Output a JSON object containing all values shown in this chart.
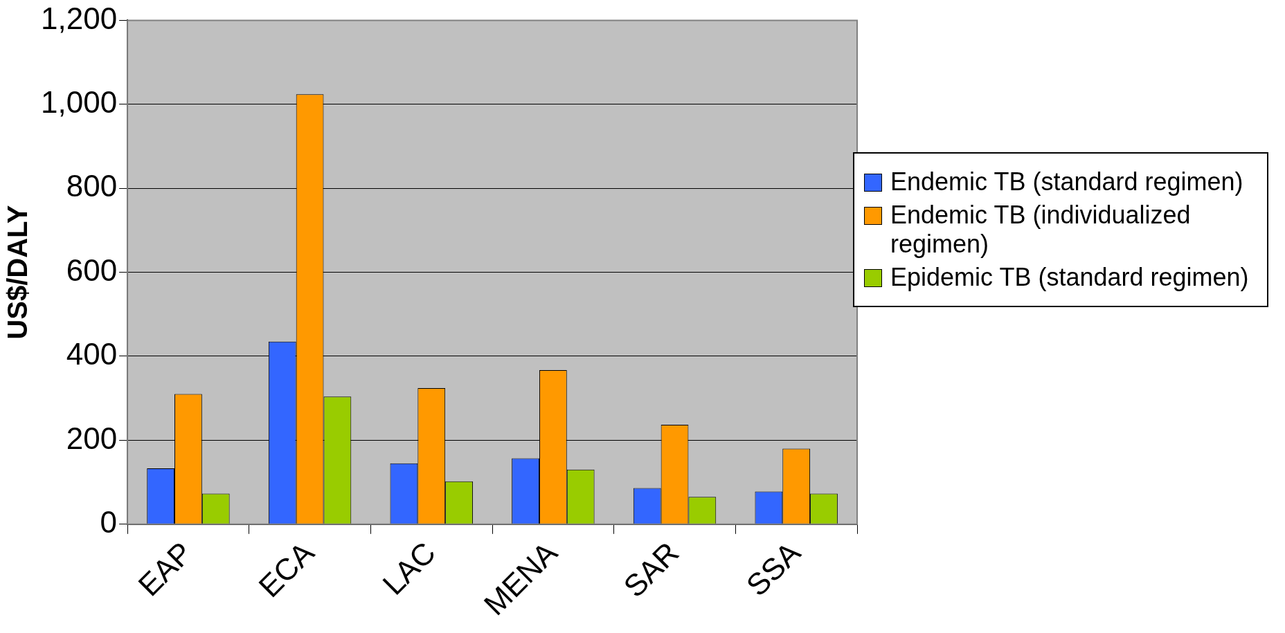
{
  "chart_data": {
    "type": "bar",
    "ylabel": "US$/DALY",
    "categories": [
      "EAP",
      "ECA",
      "LAC",
      "MENA",
      "SAR",
      "SSA"
    ],
    "series": [
      {
        "name": "Endemic TB (standard regimen)",
        "color": "#3366ff",
        "values": [
          133,
          435,
          145,
          157,
          86,
          78
        ]
      },
      {
        "name": "Endemic TB (individualized regimen)",
        "color": "#ff9900",
        "values": [
          310,
          1024,
          324,
          367,
          237,
          180
        ]
      },
      {
        "name": "Epidemic TB (standard regimen)",
        "color": "#99cc00",
        "values": [
          73,
          304,
          102,
          130,
          65,
          73
        ]
      }
    ],
    "ylim": [
      0,
      1200
    ],
    "yticks": [
      0,
      200,
      400,
      600,
      800,
      {
        "value": 1000,
        "label": "1,000"
      },
      {
        "value": 1200,
        "label": "1,200"
      }
    ],
    "grid": "y",
    "legend": "right"
  }
}
